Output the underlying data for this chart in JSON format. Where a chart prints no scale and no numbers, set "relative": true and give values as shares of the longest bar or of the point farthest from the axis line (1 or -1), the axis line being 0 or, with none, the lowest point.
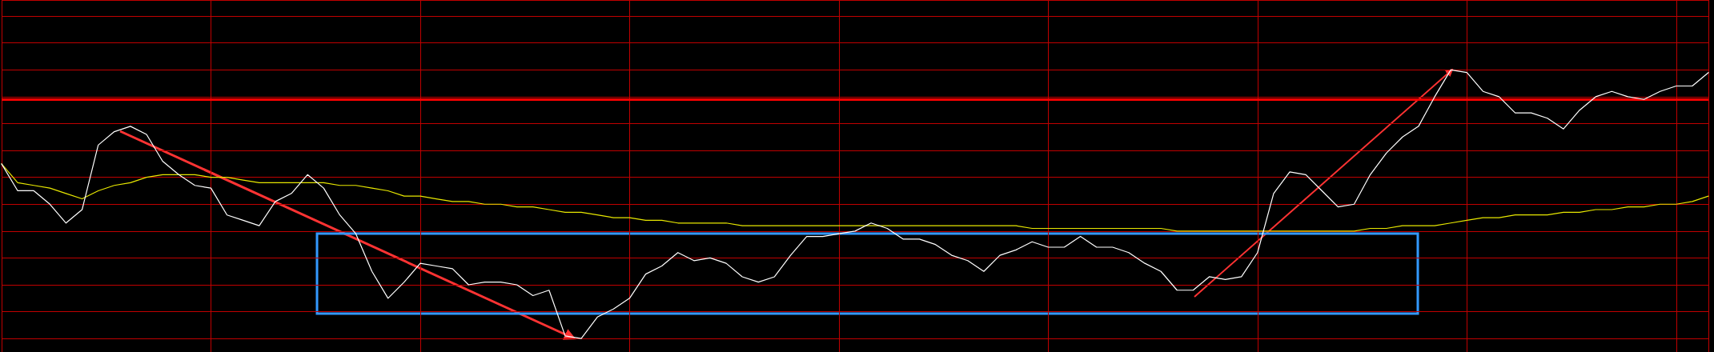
{
  "chart_data": {
    "type": "line",
    "relative": true,
    "grid": true,
    "categories": [
      null,
      null,
      null,
      null,
      null,
      null,
      null,
      null,
      null,
      null,
      null,
      null,
      null,
      null,
      null,
      null,
      null,
      null,
      null,
      null,
      null,
      null,
      null,
      null,
      null,
      null,
      null,
      null,
      null,
      null,
      null,
      null,
      null,
      null,
      null,
      null,
      null,
      null,
      null,
      null,
      null,
      null,
      null,
      null,
      null,
      null,
      null,
      null,
      null,
      null,
      null,
      null,
      null,
      null,
      null,
      null,
      null,
      null,
      null,
      null,
      null,
      null,
      null,
      null,
      null,
      null,
      null,
      null,
      null,
      null,
      null,
      null,
      null,
      null,
      null,
      null,
      null,
      null,
      null,
      null,
      null,
      null,
      null,
      null,
      null,
      null,
      null,
      null,
      null,
      null,
      null,
      null,
      null,
      null,
      null,
      null,
      null,
      null,
      null,
      null,
      null,
      null,
      null,
      null,
      null,
      null,
      null
    ],
    "series": [
      {
        "color": "#ffffff",
        "values": [
          0.65,
          0.55,
          0.55,
          0.5,
          0.43,
          0.48,
          0.72,
          0.77,
          0.79,
          0.76,
          0.66,
          0.61,
          0.57,
          0.56,
          0.46,
          0.44,
          0.42,
          0.51,
          0.54,
          0.61,
          0.56,
          0.46,
          0.39,
          0.25,
          0.15,
          0.21,
          0.28,
          0.27,
          0.26,
          0.2,
          0.21,
          0.21,
          0.2,
          0.16,
          0.18,
          0.01,
          0,
          0.08,
          0.11,
          0.15,
          0.24,
          0.27,
          0.32,
          0.29,
          0.3,
          0.28,
          0.23,
          0.21,
          0.23,
          0.31,
          0.38,
          0.38,
          0.39,
          0.4,
          0.43,
          0.41,
          0.37,
          0.37,
          0.35,
          0.31,
          0.29,
          0.25,
          0.31,
          0.33,
          0.36,
          0.34,
          0.34,
          0.38,
          0.34,
          0.34,
          0.32,
          0.28,
          0.25,
          0.18,
          0.18,
          0.23,
          0.22,
          0.23,
          0.32,
          0.54,
          0.62,
          0.61,
          0.55,
          0.49,
          0.5,
          0.61,
          0.69,
          0.75,
          0.79,
          0.9,
          1,
          0.99,
          0.92,
          0.9,
          0.84,
          0.84,
          0.82,
          0.78,
          0.85,
          0.9,
          0.92,
          0.9,
          0.89,
          0.92,
          0.94,
          0.94,
          0.99
        ]
      },
      {
        "color": "#e8e800",
        "values": [
          0.65,
          0.58,
          0.57,
          0.56,
          0.54,
          0.52,
          0.55,
          0.57,
          0.58,
          0.6,
          0.61,
          0.61,
          0.61,
          0.6,
          0.6,
          0.59,
          0.58,
          0.58,
          0.58,
          0.58,
          0.58,
          0.57,
          0.57,
          0.56,
          0.55,
          0.53,
          0.53,
          0.52,
          0.51,
          0.51,
          0.5,
          0.5,
          0.49,
          0.49,
          0.48,
          0.47,
          0.47,
          0.46,
          0.45,
          0.45,
          0.44,
          0.44,
          0.43,
          0.43,
          0.43,
          0.43,
          0.42,
          0.42,
          0.42,
          0.42,
          0.42,
          0.42,
          0.42,
          0.42,
          0.42,
          0.42,
          0.42,
          0.42,
          0.42,
          0.42,
          0.42,
          0.42,
          0.42,
          0.42,
          0.41,
          0.41,
          0.41,
          0.41,
          0.41,
          0.41,
          0.41,
          0.41,
          0.41,
          0.4,
          0.4,
          0.4,
          0.4,
          0.4,
          0.4,
          0.4,
          0.4,
          0.4,
          0.4,
          0.4,
          0.4,
          0.41,
          0.41,
          0.42,
          0.42,
          0.42,
          0.43,
          0.44,
          0.45,
          0.45,
          0.46,
          0.46,
          0.46,
          0.47,
          0.47,
          0.48,
          0.48,
          0.49,
          0.49,
          0.5,
          0.5,
          0.51,
          0.53
        ]
      }
    ],
    "ref_lines": [
      {
        "axis": "y",
        "value": 0.89,
        "color": "#ff0000"
      }
    ]
  }
}
